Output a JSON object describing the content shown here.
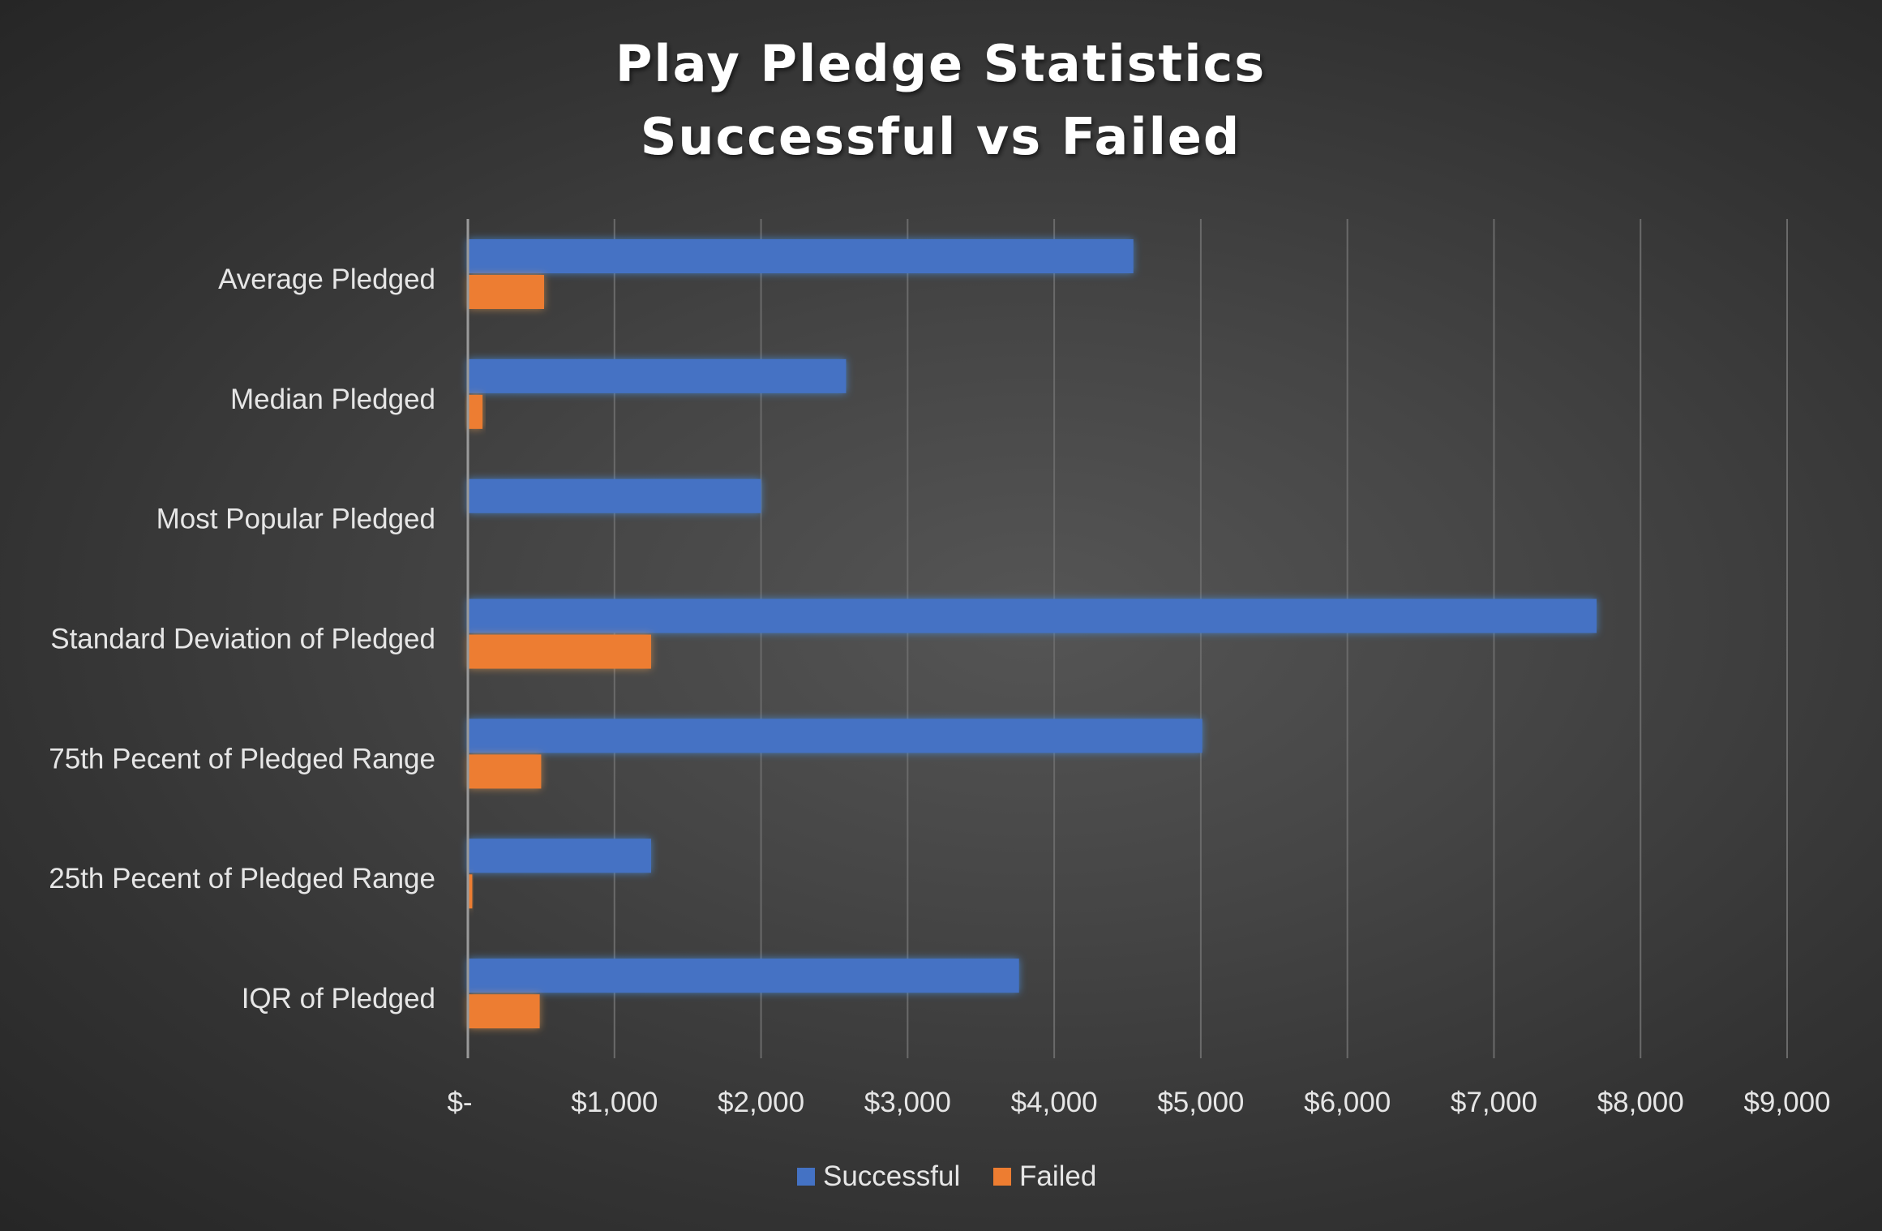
{
  "chart_data": {
    "type": "bar",
    "orientation": "horizontal",
    "title": "Play Pledge Statistics",
    "subtitle": "Successful vs Failed",
    "categories": [
      "Average Pledged",
      "Median Pledged",
      "Most Popular Pledged",
      "Standard Deviation of Pledged",
      "75th Pecent of Pledged Range",
      "25th Pecent of Pledged Range",
      "IQR of Pledged"
    ],
    "series": [
      {
        "name": "Successful",
        "color": "#4472c4",
        "values": [
          4540,
          2580,
          2000,
          7700,
          5010,
          1250,
          3760
        ]
      },
      {
        "name": "Failed",
        "color": "#ed7d31",
        "values": [
          520,
          100,
          0,
          1250,
          500,
          30,
          490
        ]
      }
    ],
    "xlim": [
      0,
      9000
    ],
    "x_ticks": [
      0,
      1000,
      2000,
      3000,
      4000,
      5000,
      6000,
      7000,
      8000,
      9000
    ],
    "x_tick_labels": [
      "$-",
      "$1,000",
      "$2,000",
      "$3,000",
      "$4,000",
      "$5,000",
      "$6,000",
      "$7,000",
      "$8,000",
      "$9,000"
    ],
    "xlabel": "",
    "ylabel": "",
    "grid": "vertical",
    "legend": "bottom"
  }
}
